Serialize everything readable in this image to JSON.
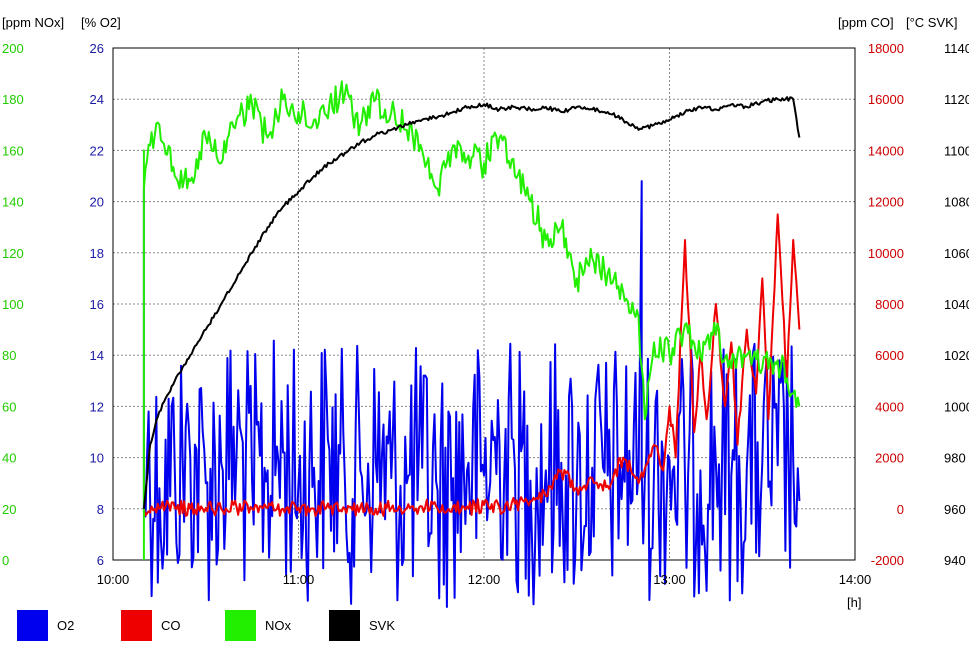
{
  "chart_data": {
    "type": "line",
    "x_axis": {
      "unit_label": "[h]",
      "ticks": [
        "10:00",
        "11:00",
        "12:00",
        "13:00",
        "14:00"
      ],
      "range": [
        "10:00",
        "14:00"
      ]
    },
    "axes": {
      "nox": {
        "title": "[ppm NOx]",
        "color": "#22cc00",
        "range": [
          0,
          200
        ],
        "ticks": [
          "0",
          "20",
          "40",
          "60",
          "80",
          "100",
          "120",
          "140",
          "160",
          "180",
          "200"
        ]
      },
      "o2": {
        "title": "[% O2]",
        "color": "#1a1aa6",
        "range": [
          6,
          26
        ],
        "ticks": [
          "6",
          "8",
          "10",
          "12",
          "14",
          "16",
          "18",
          "20",
          "22",
          "24",
          "26"
        ]
      },
      "co": {
        "title": "[ppm CO]",
        "color": "#cc0000",
        "range": [
          -2000,
          18000
        ],
        "ticks": [
          "-2000",
          "0",
          "2000",
          "4000",
          "6000",
          "8000",
          "10000",
          "12000",
          "14000",
          "16000",
          "18000"
        ]
      },
      "svk": {
        "title": "[°C SVK]",
        "color": "#000000",
        "range": [
          940,
          1140
        ],
        "ticks": [
          "940",
          "960",
          "980",
          "1000",
          "1020",
          "1040",
          "1060",
          "1080",
          "1100",
          "1120",
          "1140"
        ]
      }
    },
    "grid": true,
    "legend_position": "bottom-left",
    "series": [
      {
        "name": "O2",
        "axis": "o2",
        "color": "#0000ee",
        "x": [
          "10:10",
          "10:10",
          "10:10",
          "10:11",
          "10:15",
          "10:20",
          "10:25",
          "10:30",
          "10:35",
          "10:40",
          "10:45",
          "10:50",
          "10:55",
          "11:00",
          "11:05",
          "11:10",
          "11:15",
          "11:20",
          "11:25",
          "11:30",
          "11:35",
          "11:40",
          "11:45",
          "11:50",
          "11:55",
          "12:00",
          "12:05",
          "12:10",
          "12:15",
          "12:20",
          "12:25",
          "12:30",
          "12:35",
          "12:40",
          "12:45",
          "12:50",
          "12:51",
          "12:51",
          "12:52",
          "12:55",
          "13:00",
          "13:05",
          "13:10",
          "13:15",
          "13:20",
          "13:25",
          "13:30",
          "13:35",
          "13:40",
          "13:42"
        ],
        "y": [
          8.0,
          20.5,
          8.5,
          10.0,
          8.8,
          9.5,
          10.0,
          9.0,
          9.8,
          10.3,
          9.0,
          9.5,
          10.2,
          9.0,
          9.6,
          10.3,
          9.1,
          9.5,
          9.8,
          9.2,
          9.0,
          9.6,
          8.7,
          9.2,
          9.8,
          9.3,
          10.5,
          9.6,
          9.1,
          9.5,
          9.8,
          9.0,
          9.6,
          9.3,
          9.8,
          9.4,
          20.8,
          9.6,
          9.2,
          9.5,
          9.9,
          9.2,
          9.5,
          9.8,
          9.3,
          9.6,
          9.8,
          9.7,
          9.9,
          8.3
        ]
      },
      {
        "name": "CO",
        "axis": "co",
        "color": "#ee0000",
        "x": [
          "10:10",
          "10:15",
          "10:20",
          "10:25",
          "10:30",
          "10:35",
          "10:40",
          "10:45",
          "10:50",
          "10:55",
          "11:00",
          "11:05",
          "11:10",
          "11:15",
          "11:20",
          "11:25",
          "11:30",
          "11:35",
          "11:40",
          "11:45",
          "11:50",
          "11:55",
          "12:00",
          "12:05",
          "12:10",
          "12:15",
          "12:20",
          "12:25",
          "12:30",
          "12:35",
          "12:40",
          "12:45",
          "12:50",
          "12:55",
          "12:58",
          "13:00",
          "13:02",
          "13:05",
          "13:08",
          "13:10",
          "13:12",
          "13:15",
          "13:18",
          "13:20",
          "13:22",
          "13:25",
          "13:28",
          "13:30",
          "13:32",
          "13:35",
          "13:38",
          "13:40",
          "13:42"
        ],
        "y": [
          0,
          0,
          50,
          0,
          30,
          0,
          50,
          0,
          30,
          0,
          50,
          0,
          30,
          0,
          50,
          0,
          30,
          0,
          80,
          0,
          100,
          0,
          150,
          50,
          200,
          300,
          500,
          1500,
          800,
          1200,
          900,
          2000,
          1000,
          2500,
          1500,
          4000,
          2000,
          10500,
          3000,
          6000,
          3500,
          8000,
          4000,
          6500,
          2500,
          7000,
          4500,
          9000,
          3500,
          11500,
          5000,
          10500,
          7000
        ]
      },
      {
        "name": "NOx",
        "axis": "nox",
        "color": "#22ee00",
        "x": [
          "10:10",
          "10:10",
          "10:10",
          "10:12",
          "10:15",
          "10:20",
          "10:25",
          "10:30",
          "10:35",
          "10:40",
          "10:45",
          "10:50",
          "10:55",
          "11:00",
          "11:05",
          "11:10",
          "11:15",
          "11:20",
          "11:25",
          "11:30",
          "11:35",
          "11:40",
          "11:45",
          "11:50",
          "11:55",
          "12:00",
          "12:05",
          "12:10",
          "12:15",
          "12:20",
          "12:25",
          "12:30",
          "12:35",
          "12:40",
          "12:45",
          "12:50",
          "12:52",
          "12:55",
          "13:00",
          "13:05",
          "13:10",
          "13:15",
          "13:20",
          "13:25",
          "13:30",
          "13:35",
          "13:40",
          "13:42"
        ],
        "y": [
          0,
          160,
          145,
          162,
          170,
          150,
          148,
          165,
          155,
          172,
          178,
          165,
          180,
          175,
          172,
          178,
          182,
          170,
          180,
          175,
          168,
          160,
          145,
          162,
          158,
          155,
          165,
          150,
          140,
          125,
          130,
          110,
          118,
          112,
          105,
          95,
          55,
          85,
          80,
          92,
          80,
          88,
          75,
          80,
          75,
          78,
          65,
          60
        ]
      },
      {
        "name": "SVK",
        "axis": "svk",
        "color": "#000000",
        "x": [
          "10:10",
          "10:12",
          "10:15",
          "10:20",
          "10:25",
          "10:30",
          "10:35",
          "10:40",
          "10:45",
          "10:50",
          "10:55",
          "11:00",
          "11:05",
          "11:10",
          "11:15",
          "11:20",
          "11:25",
          "11:30",
          "11:35",
          "11:40",
          "11:45",
          "11:50",
          "11:55",
          "12:00",
          "12:05",
          "12:10",
          "12:15",
          "12:20",
          "12:25",
          "12:30",
          "12:35",
          "12:40",
          "12:45",
          "12:50",
          "12:55",
          "13:00",
          "13:05",
          "13:10",
          "13:15",
          "13:20",
          "13:25",
          "13:30",
          "13:35",
          "13:40",
          "13:42"
        ],
        "y": [
          960,
          985,
          998,
          1010,
          1020,
          1030,
          1040,
          1050,
          1060,
          1070,
          1078,
          1084,
          1090,
          1095,
          1099,
          1103,
          1106,
          1108,
          1110,
          1112,
          1113,
          1115,
          1117,
          1118,
          1116,
          1117,
          1116,
          1117,
          1115,
          1117,
          1116,
          1115,
          1112,
          1108,
          1110,
          1112,
          1115,
          1117,
          1116,
          1118,
          1117,
          1119,
          1120,
          1120,
          1105
        ]
      }
    ]
  }
}
